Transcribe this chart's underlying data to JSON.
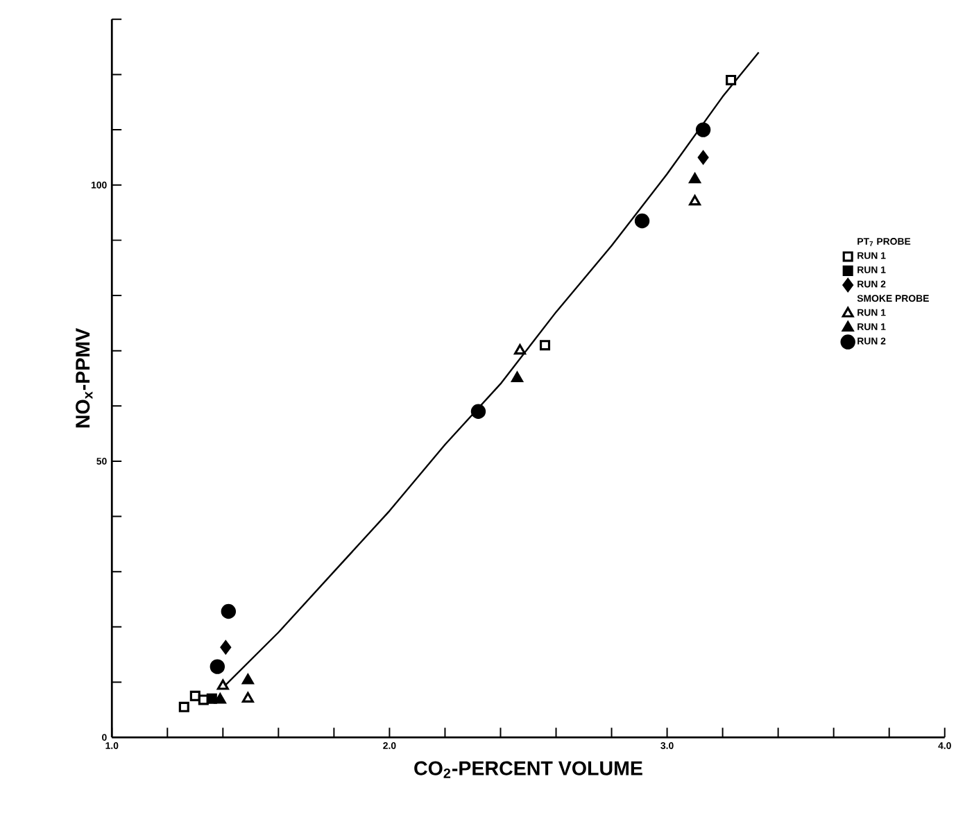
{
  "chart_data": {
    "type": "scatter",
    "xlabel": "CO$_{2}$-PERCENT VOLUME",
    "ylabel": "NO$_{x}$-PPMV",
    "xlim": [
      1.0,
      4.0
    ],
    "ylim": [
      0,
      130
    ],
    "xticks": [
      {
        "value": 1.0,
        "label": "1.0"
      },
      {
        "value": 1.2,
        "label": null
      },
      {
        "value": 1.4,
        "label": null
      },
      {
        "value": 1.6,
        "label": null
      },
      {
        "value": 1.8,
        "label": null
      },
      {
        "value": 2.0,
        "label": "2.0"
      },
      {
        "value": 2.2,
        "label": null
      },
      {
        "value": 2.4,
        "label": null
      },
      {
        "value": 2.6,
        "label": null
      },
      {
        "value": 2.8,
        "label": null
      },
      {
        "value": 3.0,
        "label": "3.0"
      },
      {
        "value": 3.2,
        "label": null
      },
      {
        "value": 3.4,
        "label": null
      },
      {
        "value": 3.6,
        "label": null
      },
      {
        "value": 3.8,
        "label": null
      },
      {
        "value": 4.0,
        "label": "4.0"
      }
    ],
    "yticks": [
      0,
      {
        "value": 10,
        "label": null
      },
      {
        "value": 20,
        "label": null
      },
      {
        "value": 30,
        "label": null
      },
      {
        "value": 40,
        "label": null
      },
      50,
      {
        "value": 60,
        "label": null
      },
      {
        "value": 70,
        "label": null
      },
      {
        "value": 80,
        "label": null
      },
      {
        "value": 90,
        "label": null
      },
      100,
      {
        "value": 110,
        "label": null
      },
      {
        "value": 120,
        "label": null
      },
      {
        "value": 130,
        "label": null
      }
    ],
    "grid": false,
    "legend": "right",
    "annotations": [
      "PT$_{7}$ PROBE",
      "SMOKE PROBE"
    ],
    "series": [
      {
        "name": "RUN 1",
        "color": "#000000",
        "marker": "square",
        "x": [
          1.26,
          1.3,
          1.33,
          2.56,
          3.23
        ],
        "values": [
          5.5,
          7.5,
          6.8,
          71,
          119
        ]
      },
      {
        "name": "RUN 1",
        "color": "#000000",
        "marker": "square",
        "x": [
          1.36
        ],
        "values": [
          7
        ]
      },
      {
        "name": "RUN 2",
        "color": "#000000",
        "marker": "diamond",
        "x": [
          1.41,
          3.13
        ],
        "values": [
          16.3,
          105
        ]
      },
      {
        "name": "RUN 1",
        "color": "#000000",
        "marker": "triangle",
        "x": [
          1.4,
          1.49,
          2.47,
          3.1
        ],
        "values": [
          9.3,
          7,
          70,
          97
        ]
      },
      {
        "name": "RUN 1",
        "color": "#000000",
        "marker": "triangle",
        "x": [
          1.39,
          1.49,
          2.46,
          3.1
        ],
        "values": [
          6.8,
          10.3,
          65,
          101
        ]
      },
      {
        "name": "RUN 2",
        "color": "#000000",
        "marker": "circle",
        "x": [
          1.42,
          1.38,
          2.32,
          2.91,
          3.13
        ],
        "values": [
          22.8,
          12.8,
          59,
          93.5,
          110
        ]
      },
      {
        "type": "line",
        "color": "#000000",
        "marker": "none",
        "line_style": "solid",
        "x": [
          1.4,
          1.6,
          1.8,
          2.0,
          2.2,
          2.4,
          2.6,
          2.8,
          3.0,
          3.2,
          3.33
        ],
        "values": [
          9,
          19,
          30,
          41,
          53,
          64,
          77,
          89,
          102,
          116,
          124
        ]
      }
    ]
  }
}
